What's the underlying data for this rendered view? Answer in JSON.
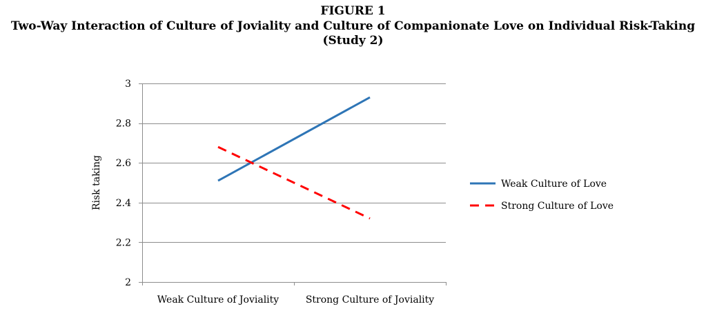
{
  "figure": {
    "number": "FIGURE 1",
    "title": "Two-Way Interaction of Culture of Joviality and Culture of Companionate Love on Individual Risk-Taking",
    "subtitle": "(Study 2)"
  },
  "chart_data": {
    "type": "line",
    "title": "FIGURE 1 Two-Way Interaction of Culture of Joviality and Culture of Companionate Love on Individual Risk-Taking (Study 2)",
    "categories": [
      "Weak Culture of Joviality",
      "Strong Culture of Joviality"
    ],
    "series": [
      {
        "name": "Weak Culture of Love",
        "values": [
          2.51,
          2.93
        ],
        "color": "#2e75b6",
        "style": "solid"
      },
      {
        "name": "Strong Culture of Love",
        "values": [
          2.68,
          2.32
        ],
        "color": "#ff0000",
        "style": "dashed"
      }
    ],
    "xlabel": "",
    "ylabel": "Risk taking",
    "ylim": [
      2,
      3
    ],
    "yticks": [
      2,
      2.2,
      2.4,
      2.6,
      2.8,
      3
    ],
    "ytick_labels": [
      "2",
      "2.2",
      "2.4",
      "2.6",
      "2.8",
      "3"
    ],
    "grid": true,
    "legend": "right"
  }
}
